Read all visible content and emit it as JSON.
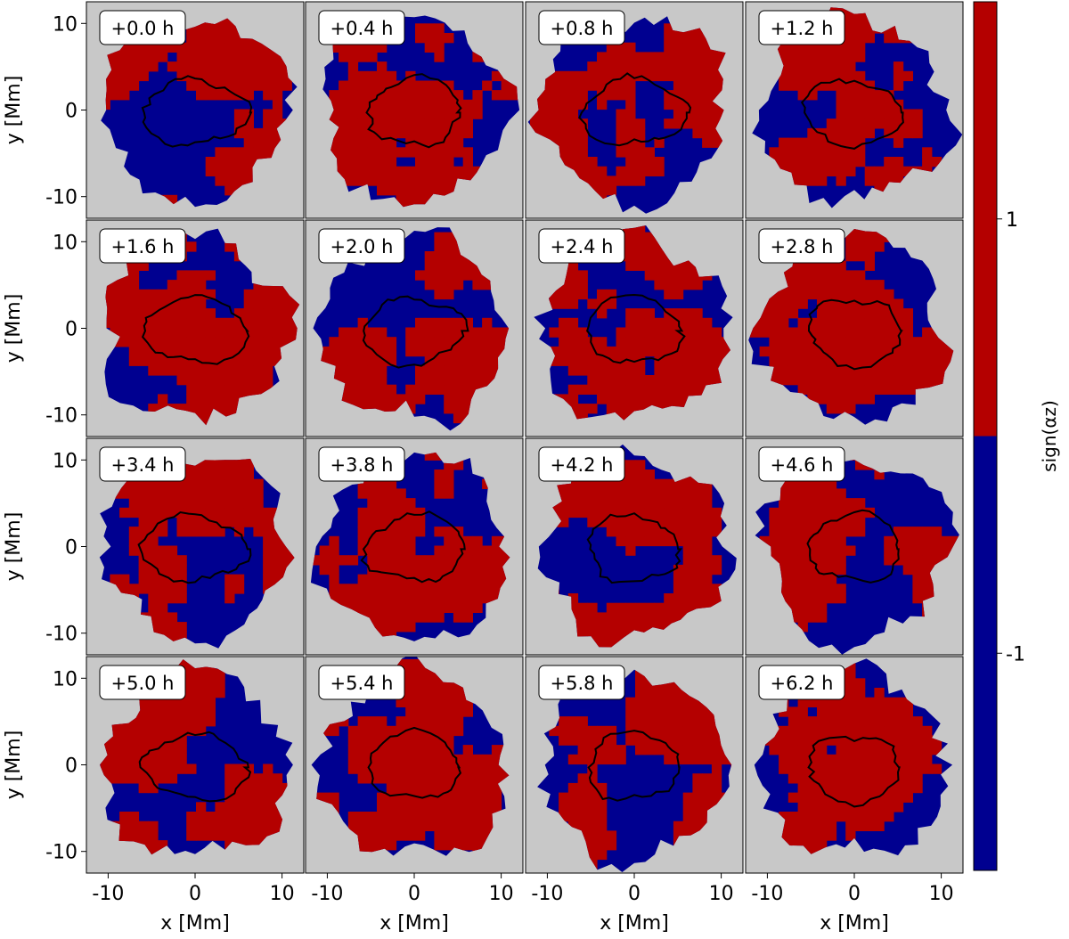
{
  "chart_data": {
    "type": "heatmap",
    "layout": "4x4 small multiples",
    "panels": [
      {
        "label": "+0.0 h"
      },
      {
        "label": "+0.4 h"
      },
      {
        "label": "+0.8 h"
      },
      {
        "label": "+1.2 h"
      },
      {
        "label": "+1.6 h"
      },
      {
        "label": "+2.0 h"
      },
      {
        "label": "+2.4 h"
      },
      {
        "label": "+2.8 h"
      },
      {
        "label": "+3.4 h"
      },
      {
        "label": "+3.8 h"
      },
      {
        "label": "+4.2 h"
      },
      {
        "label": "+4.6 h"
      },
      {
        "label": "+5.0 h"
      },
      {
        "label": "+5.4 h"
      },
      {
        "label": "+5.8 h"
      },
      {
        "label": "+6.2 h"
      }
    ],
    "x_axis": {
      "label": "x [Mm]",
      "ticks": [
        -10,
        0,
        10
      ],
      "tick_labels": [
        "-10",
        "0",
        "10"
      ],
      "range": [
        -12.5,
        12.5
      ]
    },
    "y_axis": {
      "label": "y [Mm]",
      "ticks": [
        -10,
        0,
        10
      ],
      "tick_labels": [
        "-10",
        "0",
        "10"
      ],
      "range": [
        -12.5,
        12.5
      ]
    },
    "colorbar": {
      "label": "sign(αz)",
      "levels": [
        {
          "value": 1,
          "tick_label": "1",
          "color": "#b40000"
        },
        {
          "value": -1,
          "tick_label": "-1",
          "color": "#000090"
        }
      ]
    },
    "background_color": "#c8c8c8",
    "contour_color": "#000000",
    "grid": false
  }
}
